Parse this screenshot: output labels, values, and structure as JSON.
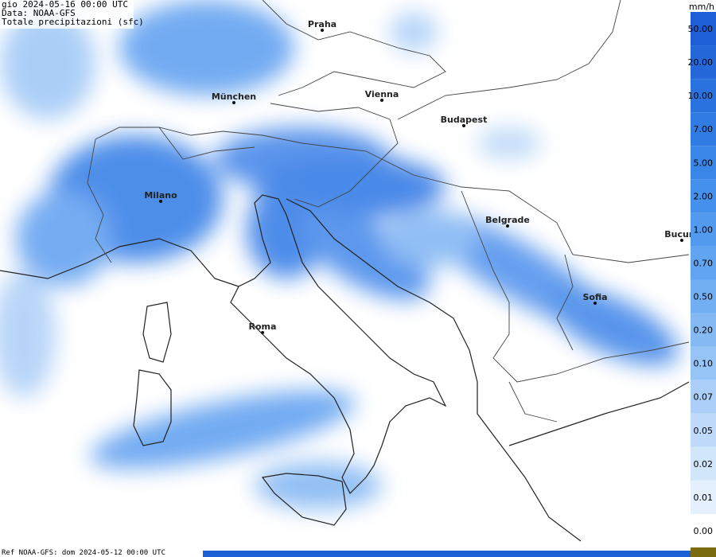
{
  "header": {
    "date": "gio 2024-05-16 00:00 UTC",
    "source": "Data: NOAA-GFS",
    "variable": "Totale precipitazioni (sfc)"
  },
  "cities": [
    {
      "label": "Praha"
    },
    {
      "label": "München"
    },
    {
      "label": "Vienna"
    },
    {
      "label": "Budapest"
    },
    {
      "label": "Milano"
    },
    {
      "label": "Belgrade"
    },
    {
      "label": "Bucure"
    },
    {
      "label": "Sofia"
    },
    {
      "label": "Roma"
    }
  ],
  "legend": {
    "unit": "mm/h",
    "items": [
      {
        "label": "50.00",
        "color": "#1f5fd6"
      },
      {
        "label": "20.00",
        "color": "#2468da"
      },
      {
        "label": "10.00",
        "color": "#2a72de"
      },
      {
        "label": "7.00",
        "color": "#317ce2"
      },
      {
        "label": "5.00",
        "color": "#3a86e6"
      },
      {
        "label": "2.00",
        "color": "#4590ea"
      },
      {
        "label": "1.00",
        "color": "#529aed"
      },
      {
        "label": "0.70",
        "color": "#61a4f0"
      },
      {
        "label": "0.50",
        "color": "#72aef2"
      },
      {
        "label": "0.20",
        "color": "#84b9f4"
      },
      {
        "label": "0.10",
        "color": "#97c4f6"
      },
      {
        "label": "0.07",
        "color": "#abcff8"
      },
      {
        "label": "0.05",
        "color": "#bfdafa"
      },
      {
        "label": "0.02",
        "color": "#d2e6fb"
      },
      {
        "label": "0.01",
        "color": "#e4f0fd"
      },
      {
        "label": "0.00",
        "color": "#ffffff"
      }
    ]
  },
  "footer": {
    "reference": "Ref NOAA-GFS: dom 2024-05-12 00:00 UTC"
  }
}
